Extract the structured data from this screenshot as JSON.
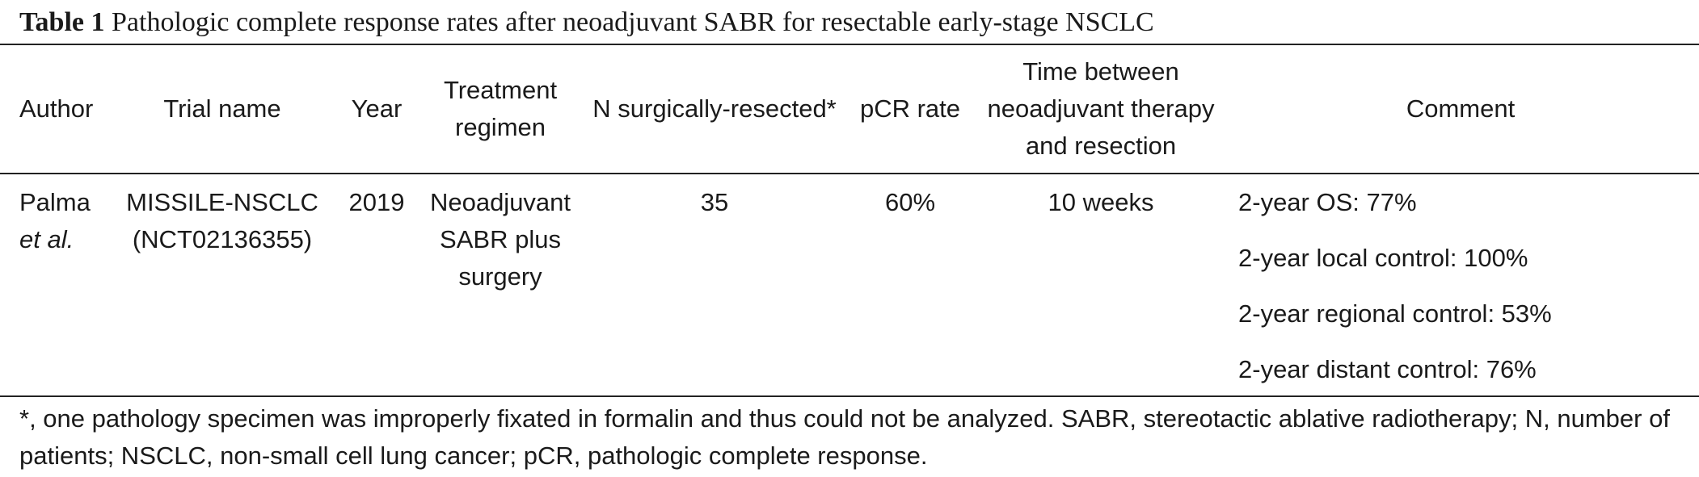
{
  "caption": {
    "label": "Table 1",
    "title": "Pathologic complete response rates after neoadjuvant SABR for resectable early-stage NSCLC"
  },
  "headers": {
    "author": "Author",
    "trial_name": "Trial name",
    "year": "Year",
    "treatment": [
      "Treatment",
      "regimen"
    ],
    "n_resected": "N surgically-resected*",
    "pcr_rate": "pCR rate",
    "time_between": [
      "Time between",
      "neoadjuvant therapy",
      "and resection"
    ],
    "comment": "Comment"
  },
  "rows": [
    {
      "author": [
        "Palma",
        "et al."
      ],
      "trial_name": [
        "MISSILE-NSCLC",
        "(NCT02136355)"
      ],
      "year": "2019",
      "treatment": [
        "Neoadjuvant",
        "SABR plus",
        "surgery"
      ],
      "n_resected": "35",
      "pcr_rate": "60%",
      "time_between": "10 weeks",
      "comments": [
        "2-year OS: 77%",
        "2-year local control: 100%",
        "2-year regional control: 53%",
        "2-year distant control: 76%"
      ]
    }
  ],
  "footnote": "*, one pathology specimen was improperly fixated in formalin and thus could not be analyzed. SABR, stereotactic ablative radiotherapy; N, number of patients; NSCLC, non-small cell lung cancer; pCR, pathologic complete response."
}
